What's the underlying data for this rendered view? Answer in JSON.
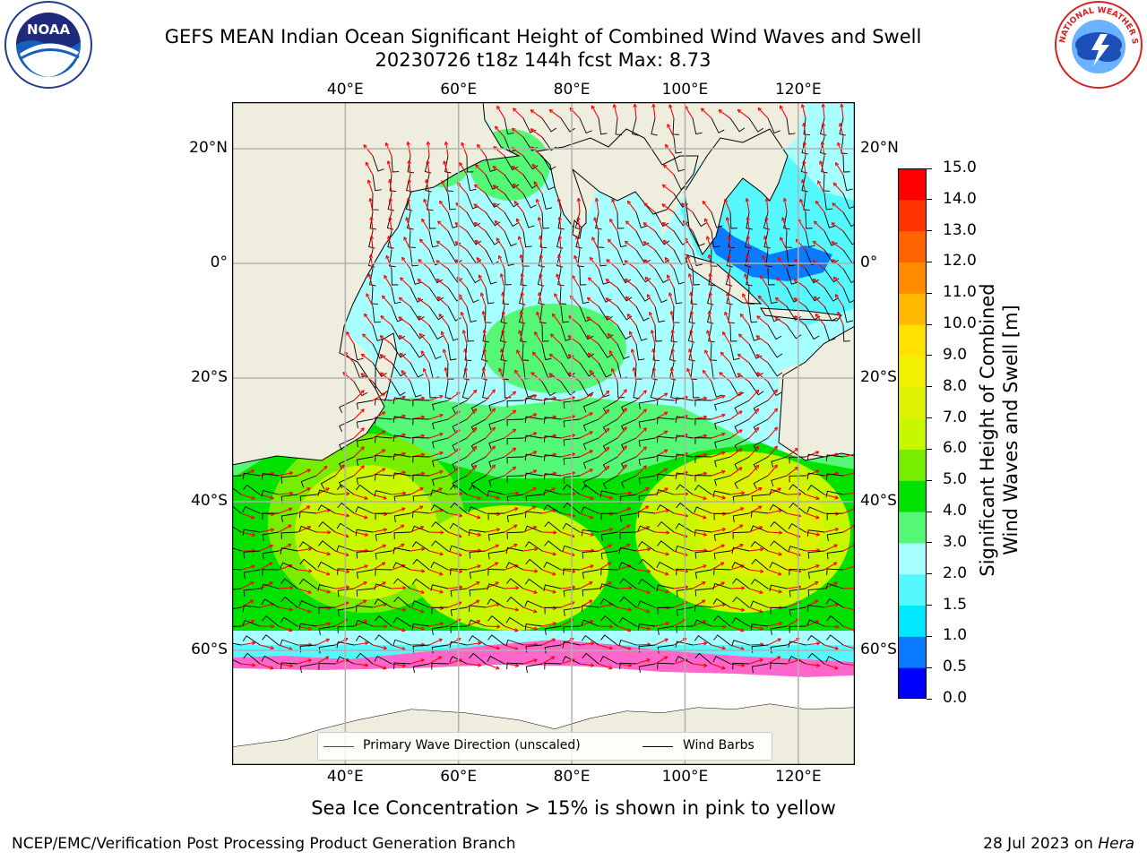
{
  "title": {
    "line1": "GEFS MEAN Indian Ocean Significant Height of Combined Wind Waves and Swell",
    "line2": "20230726 t18z 144h fcst   Max: 8.73"
  },
  "logos": {
    "left": "noaa-logo",
    "left_text": "NOAA",
    "right": "nws-logo",
    "right_text": "NATIONAL WEATHER SERVICE"
  },
  "map": {
    "extent": {
      "lon": [
        20,
        130
      ],
      "lat": [
        -78,
        28
      ]
    },
    "lon_ticks": [
      40,
      60,
      80,
      100,
      120
    ],
    "lon_labels": [
      "40°E",
      "60°E",
      "80°E",
      "100°E",
      "120°E"
    ],
    "lat_ticks": [
      20,
      0,
      -20,
      -40,
      -60
    ],
    "lat_labels": [
      "20°N",
      "0°",
      "20°S",
      "40°S",
      "60°S"
    ],
    "colors": {
      "land": "#efedde",
      "sea_ice": "#ff66cc",
      "antarctica": "#ffffff",
      "grid": "#b0b0b0"
    }
  },
  "colorbar": {
    "ticks": [
      "15.0",
      "14.0",
      "13.0",
      "12.0",
      "11.0",
      "10.0",
      "9.0",
      "8.0",
      "7.0",
      "6.0",
      "5.0",
      "4.0",
      "3.0",
      "2.0",
      "1.5",
      "1.0",
      "0.5",
      "0.0"
    ],
    "bands": [
      {
        "from": 0.0,
        "to": 0.5,
        "color": "#0000ff"
      },
      {
        "from": 0.5,
        "to": 1.0,
        "color": "#0a7bff"
      },
      {
        "from": 1.0,
        "to": 1.5,
        "color": "#00e8ff"
      },
      {
        "from": 1.5,
        "to": 2.0,
        "color": "#55f8ff"
      },
      {
        "from": 2.0,
        "to": 3.0,
        "color": "#a8ffff"
      },
      {
        "from": 3.0,
        "to": 4.0,
        "color": "#55f777"
      },
      {
        "from": 4.0,
        "to": 5.0,
        "color": "#00e100"
      },
      {
        "from": 5.0,
        "to": 6.0,
        "color": "#77ed00"
      },
      {
        "from": 6.0,
        "to": 7.0,
        "color": "#c8f800"
      },
      {
        "from": 7.0,
        "to": 8.0,
        "color": "#dcf200"
      },
      {
        "from": 8.0,
        "to": 9.0,
        "color": "#f3f000"
      },
      {
        "from": 9.0,
        "to": 10.0,
        "color": "#ffe100"
      },
      {
        "from": 10.0,
        "to": 11.0,
        "color": "#ffb900"
      },
      {
        "from": 11.0,
        "to": 12.0,
        "color": "#ff8c00"
      },
      {
        "from": 12.0,
        "to": 13.0,
        "color": "#ff6400"
      },
      {
        "from": 13.0,
        "to": 14.0,
        "color": "#ff3200"
      },
      {
        "from": 14.0,
        "to": 15.0,
        "color": "#ff0000"
      }
    ],
    "label": "Significant Height of Combined\nWind Waves and Swell [m]"
  },
  "legend": {
    "wave_label": "Primary Wave Direction (unscaled)",
    "wave_color": "#ff0000",
    "barb_label": "Wind Barbs",
    "barb_color": "#000000"
  },
  "footer": {
    "ice_note": "Sea Ice Concentration > 15% is shown in pink to yellow",
    "left": "NCEP/EMC/Verification Post Processing Product Generation Branch",
    "right_date": "28 Jul 2023 on",
    "right_machine": "Hera"
  }
}
